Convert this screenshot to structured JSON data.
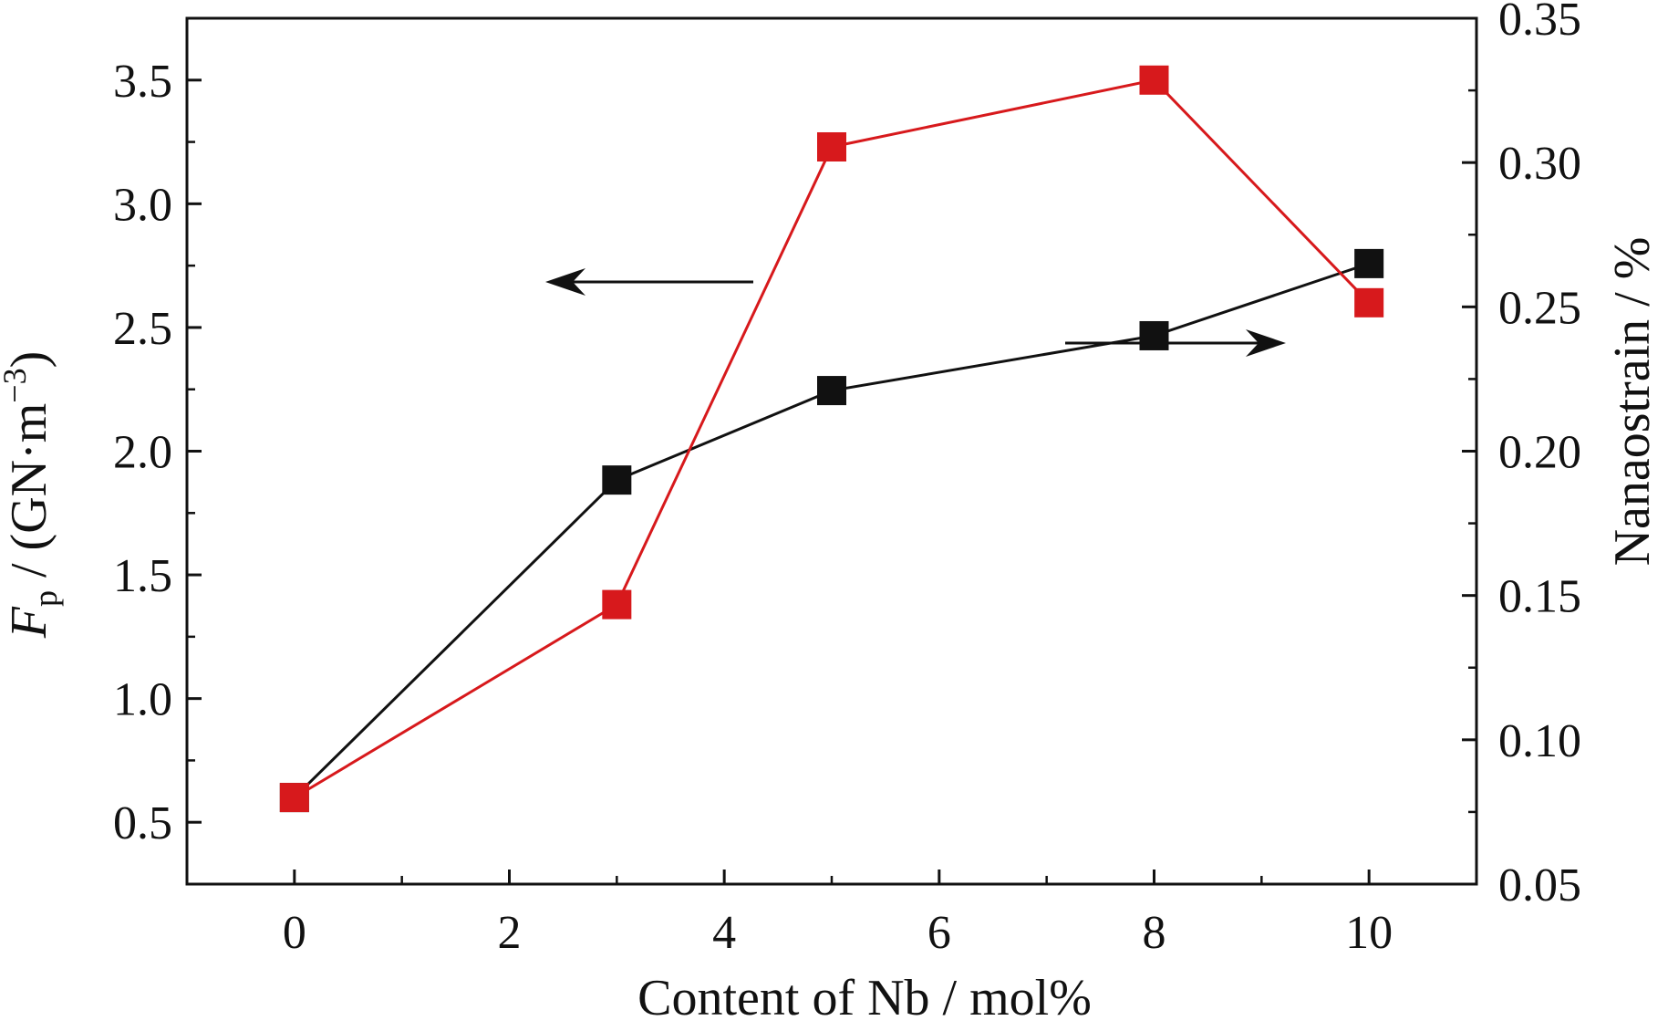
{
  "chart_data": {
    "type": "line",
    "xlabel": "Content of Nb / mol%",
    "ylabel_left": {
      "symbol": "F",
      "subscript": "p",
      "unit_prefix": " / (GN·m",
      "exponent": "−3",
      "unit_suffix": ")"
    },
    "ylabel_right": "Nanaostrain / %",
    "xlim": [
      -1,
      11
    ],
    "ylim_left": [
      0.25,
      3.75
    ],
    "ylim_right": [
      0.05,
      0.35
    ],
    "x_ticks": [
      "0",
      "2",
      "4",
      "6",
      "8",
      "10"
    ],
    "y_left_ticks": [
      "0.5",
      "1.0",
      "1.5",
      "2.0",
      "2.5",
      "3.0",
      "3.5"
    ],
    "y_right_ticks": [
      "0.05",
      "0.10",
      "0.15",
      "0.20",
      "0.25",
      "0.30",
      "0.35"
    ],
    "grid": false,
    "series": [
      {
        "axis": "left",
        "color": "#d7191c",
        "marker": "square",
        "x": [
          0,
          3,
          5,
          8,
          10
        ],
        "y": [
          0.6,
          1.38,
          3.23,
          3.5,
          2.6
        ]
      },
      {
        "axis": "right",
        "color": "#111111",
        "marker": "square",
        "x": [
          0,
          3,
          5,
          8,
          10
        ],
        "y": [
          0.08,
          0.19,
          0.221,
          0.24,
          0.265
        ]
      }
    ],
    "annotations": [
      {
        "type": "arrow",
        "direction": "left",
        "points_to": "left axis"
      },
      {
        "type": "arrow",
        "direction": "right",
        "points_to": "right axis"
      }
    ]
  }
}
